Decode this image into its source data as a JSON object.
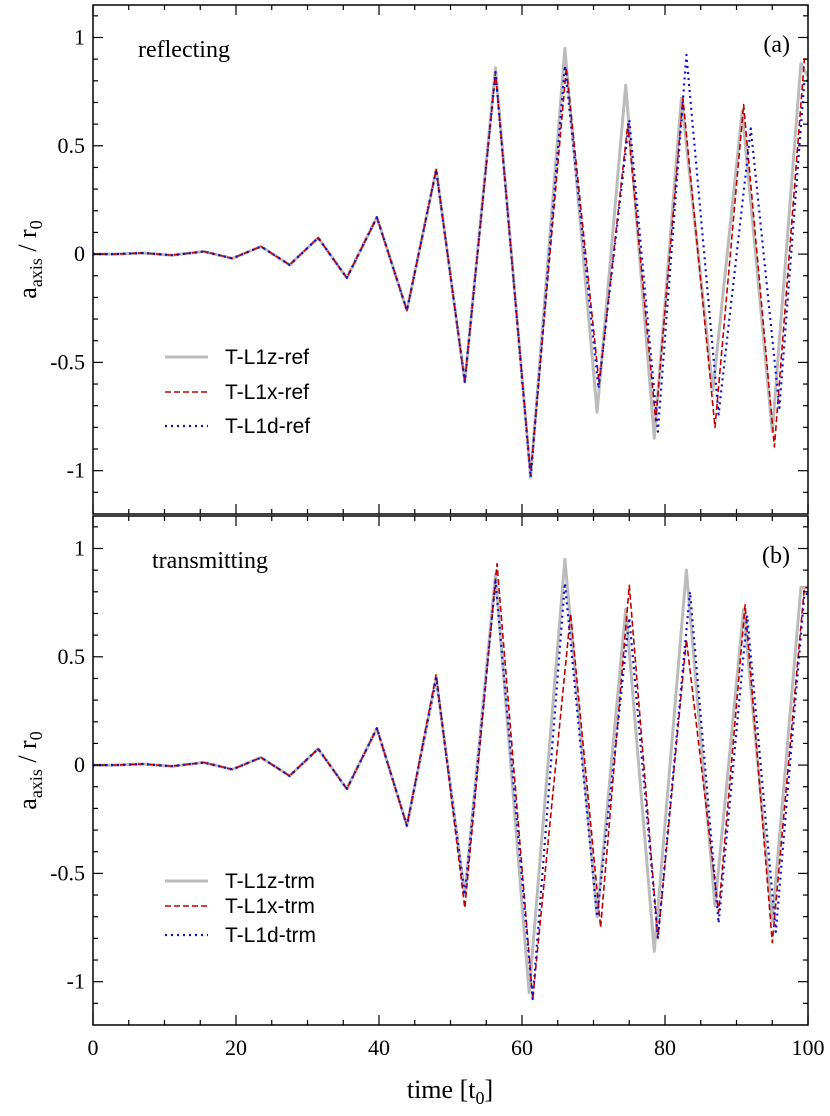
{
  "chart_data": [
    {
      "type": "line",
      "panel_label": "(a)",
      "annotation": "reflecting",
      "ylabel_main": "a",
      "ylabel_sub": "axis",
      "ylabel_mid": " / r",
      "ylabel_sub2": "0",
      "xlim": [
        0,
        100
      ],
      "ylim": [
        -1.2,
        1.15
      ],
      "xticks": [
        0,
        20,
        40,
        60,
        80,
        100
      ],
      "yticks": [
        -1,
        -0.5,
        0,
        0.5,
        1
      ],
      "ytick_labels": [
        "-1",
        "-0.5",
        "0",
        "0.5",
        "1"
      ],
      "legend_position": "lower-left",
      "series": [
        {
          "name": "T-L1z-ref",
          "color": "#bbbbbb",
          "style": "solid",
          "x": [
            0,
            3,
            7,
            11,
            15.5,
            19.5,
            23.5,
            27.5,
            31.5,
            35.5,
            39.7,
            43.9,
            48,
            52,
            56.3,
            61.2,
            66,
            70.5,
            74.5,
            78.5,
            82.3,
            86.7,
            90.8,
            95,
            99,
            100
          ],
          "y": [
            0,
            0,
            0.005,
            -0.005,
            0.012,
            -0.02,
            0.035,
            -0.05,
            0.075,
            -0.11,
            0.17,
            -0.26,
            0.39,
            -0.59,
            0.86,
            -1.03,
            0.95,
            -0.73,
            0.78,
            -0.85,
            0.72,
            -0.63,
            0.66,
            -0.82,
            0.88,
            0.82
          ]
        },
        {
          "name": "T-L1x-ref",
          "color": "#c00000",
          "style": "dashed",
          "x": [
            0,
            3,
            7,
            11,
            15.5,
            19.5,
            23.5,
            27.5,
            31.5,
            35.5,
            39.7,
            43.9,
            48,
            52,
            56.3,
            61.2,
            66.2,
            70.8,
            74.8,
            78.7,
            82.5,
            87,
            91,
            95.3,
            99.5,
            100
          ],
          "y": [
            0,
            0,
            0.005,
            -0.005,
            0.012,
            -0.02,
            0.035,
            -0.05,
            0.075,
            -0.11,
            0.17,
            -0.26,
            0.39,
            -0.59,
            0.84,
            -1.02,
            0.86,
            -0.6,
            0.6,
            -0.77,
            0.72,
            -0.8,
            0.69,
            -0.89,
            0.9,
            0.9
          ]
        },
        {
          "name": "T-L1d-ref",
          "color": "#1010c8",
          "style": "dotted",
          "x": [
            0,
            3,
            7,
            11,
            15.5,
            19.5,
            23.5,
            27.5,
            31.5,
            35.5,
            39.7,
            43.9,
            48,
            52,
            56.3,
            61.2,
            66,
            70.7,
            75,
            79,
            83,
            87.5,
            92,
            96,
            99.5,
            100
          ],
          "y": [
            0,
            0,
            0.005,
            -0.005,
            0.012,
            -0.02,
            0.035,
            -0.05,
            0.075,
            -0.11,
            0.17,
            -0.26,
            0.39,
            -0.59,
            0.84,
            -1.03,
            0.87,
            -0.62,
            0.62,
            -0.82,
            0.92,
            -0.74,
            0.58,
            -0.71,
            0.8,
            0.8
          ]
        }
      ]
    },
    {
      "type": "line",
      "panel_label": "(b)",
      "annotation": "transmitting",
      "ylabel_main": "a",
      "ylabel_sub": "axis",
      "ylabel_mid": " / r",
      "ylabel_sub2": "0",
      "xlabel_main": "time [t",
      "xlabel_sub": "0",
      "xlabel_end": "]",
      "xlim": [
        0,
        100
      ],
      "ylim": [
        -1.2,
        1.15
      ],
      "xticks": [
        0,
        20,
        40,
        60,
        80,
        100
      ],
      "xtick_labels": [
        "0",
        "20",
        "40",
        "60",
        "80",
        "100"
      ],
      "yticks": [
        -1,
        -0.5,
        0,
        0.5,
        1
      ],
      "ytick_labels": [
        "-1",
        "-0.5",
        "0",
        "0.5",
        "1"
      ],
      "legend_position": "lower-left",
      "series": [
        {
          "name": "T-L1z-trm",
          "color": "#bbbbbb",
          "style": "solid",
          "x": [
            0,
            3,
            7,
            11,
            15.5,
            19.5,
            23.5,
            27.5,
            31.5,
            35.5,
            39.7,
            43.9,
            48,
            52,
            56.3,
            61,
            66,
            70.5,
            74.5,
            78.5,
            83,
            87,
            91,
            95,
            99,
            100
          ],
          "y": [
            0,
            0,
            0.005,
            -0.005,
            0.012,
            -0.02,
            0.035,
            -0.05,
            0.075,
            -0.11,
            0.17,
            -0.28,
            0.4,
            -0.6,
            0.88,
            -1.05,
            0.95,
            -0.7,
            0.72,
            -0.86,
            0.9,
            -0.65,
            0.72,
            -0.72,
            0.82,
            0.82
          ]
        },
        {
          "name": "T-L1x-trm",
          "color": "#c00000",
          "style": "dashed",
          "x": [
            0,
            3,
            7,
            11,
            15.5,
            19.5,
            23.5,
            27.5,
            31.5,
            35.5,
            39.7,
            43.9,
            48,
            52,
            56.5,
            61.5,
            66.8,
            71,
            75,
            79,
            83,
            87.5,
            91.2,
            95,
            99.5,
            100
          ],
          "y": [
            0,
            0,
            0.005,
            -0.005,
            0.012,
            -0.02,
            0.035,
            -0.05,
            0.075,
            -0.11,
            0.17,
            -0.28,
            0.42,
            -0.66,
            0.93,
            -1.08,
            0.7,
            -0.75,
            0.83,
            -0.8,
            0.58,
            -0.68,
            0.74,
            -0.82,
            0.82,
            0.82
          ]
        },
        {
          "name": "T-L1d-trm",
          "color": "#1010c8",
          "style": "dotted",
          "x": [
            0,
            3,
            7,
            11,
            15.5,
            19.5,
            23.5,
            27.5,
            31.5,
            35.5,
            39.7,
            43.9,
            48,
            52,
            56.3,
            61.5,
            66,
            70.5,
            75,
            79,
            83.5,
            87.5,
            91.5,
            95.5,
            99.5,
            100
          ],
          "y": [
            0,
            0,
            0.005,
            -0.005,
            0.012,
            -0.02,
            0.035,
            -0.05,
            0.075,
            -0.11,
            0.17,
            -0.28,
            0.4,
            -0.6,
            0.85,
            -1.08,
            0.84,
            -0.7,
            0.68,
            -0.8,
            0.8,
            -0.73,
            0.69,
            -0.77,
            0.79,
            0.79
          ]
        }
      ]
    }
  ]
}
